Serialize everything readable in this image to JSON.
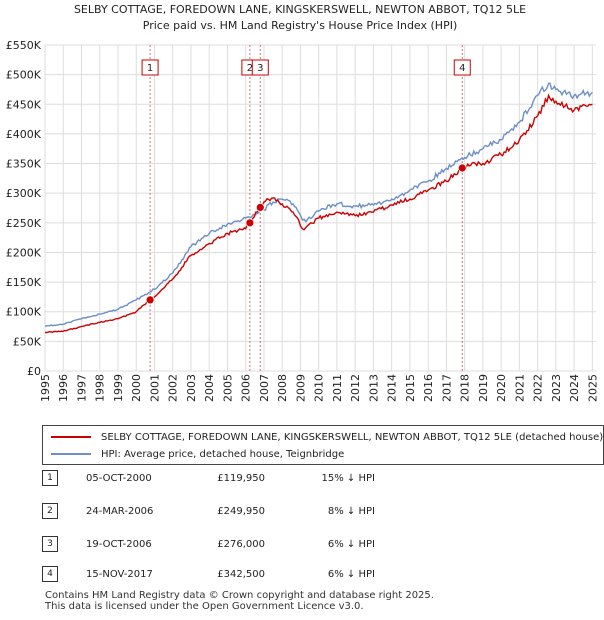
{
  "chart_data": {
    "type": "line",
    "title": "SELBY COTTAGE, FOREDOWN LANE, KINGSKERSWELL, NEWTON ABBOT, TQ12 5LE",
    "subtitle": "Price paid vs. HM Land Registry's House Price Index (HPI)",
    "xlim": [
      1995,
      2025.2
    ],
    "ylim": [
      0,
      550000
    ],
    "y_ticks": [
      0,
      50000,
      100000,
      150000,
      200000,
      250000,
      300000,
      350000,
      400000,
      450000,
      500000,
      550000
    ],
    "y_tick_labels": [
      "£0",
      "£50K",
      "£100K",
      "£150K",
      "£200K",
      "£250K",
      "£300K",
      "£350K",
      "£400K",
      "£450K",
      "£500K",
      "£550K"
    ],
    "x_ticks": [
      1995,
      1996,
      1997,
      1998,
      1999,
      2000,
      2001,
      2002,
      2003,
      2004,
      2005,
      2006,
      2007,
      2008,
      2009,
      2010,
      2011,
      2012,
      2013,
      2014,
      2015,
      2016,
      2017,
      2018,
      2019,
      2020,
      2021,
      2022,
      2023,
      2024,
      2025
    ],
    "x_tick_labels": [
      "1995",
      "1996",
      "1997",
      "1998",
      "1999",
      "2000",
      "2001",
      "2002",
      "2003",
      "2004",
      "2005",
      "2006",
      "2007",
      "2008",
      "2009",
      "2010",
      "2011",
      "2012",
      "2013",
      "2014",
      "2015",
      "2016",
      "2017",
      "2018",
      "2019",
      "2020",
      "2021",
      "2022",
      "2023",
      "2024",
      "2025"
    ],
    "grid": true,
    "series": [
      {
        "name": "SELBY COTTAGE, FOREDOWN LANE, KINGSKERSWELL, NEWTON ABBOT, TQ12 5LE (detached house)",
        "color": "#cc0000",
        "x": [
          1995,
          1996,
          1997,
          1998,
          1999,
          2000,
          2000.76,
          2001,
          2002,
          2003,
          2004,
          2005,
          2006,
          2006.23,
          2006.8,
          2007,
          2007.5,
          2008,
          2008.6,
          2008.9,
          2009.1,
          2009.3,
          2010,
          2011,
          2012,
          2013,
          2014,
          2015,
          2016,
          2017,
          2017.87,
          2018,
          2019,
          2020,
          2021,
          2022,
          2022.6,
          2023,
          2024,
          2025
        ],
        "y": [
          65000,
          67000,
          75000,
          82000,
          88000,
          100000,
          119950,
          125000,
          155000,
          195000,
          215000,
          232000,
          240000,
          249950,
          276000,
          285000,
          292000,
          282000,
          268000,
          255000,
          240000,
          242000,
          258000,
          268000,
          262000,
          268000,
          280000,
          290000,
          305000,
          320000,
          342500,
          345000,
          350000,
          365000,
          390000,
          430000,
          465000,
          455000,
          440000,
          450000
        ]
      },
      {
        "name": "HPI: Average price, detached house, Teignbridge",
        "color": "#6b8fc6",
        "x": [
          1995,
          1996,
          1997,
          1998,
          1999,
          2000,
          2001,
          2002,
          2003,
          2004,
          2005,
          2006,
          2007,
          2007.5,
          2008,
          2008.6,
          2008.9,
          2009.1,
          2009.3,
          2010,
          2011,
          2012,
          2013,
          2014,
          2015,
          2016,
          2017,
          2018,
          2019,
          2020,
          2021,
          2022,
          2022.6,
          2023,
          2024,
          2025
        ],
        "y": [
          76000,
          79000,
          88000,
          96000,
          104000,
          120000,
          138000,
          165000,
          210000,
          232000,
          248000,
          258000,
          272000,
          285000,
          290000,
          282000,
          268000,
          255000,
          252000,
          270000,
          282000,
          278000,
          280000,
          290000,
          305000,
          320000,
          342000,
          360000,
          375000,
          390000,
          420000,
          465000,
          485000,
          475000,
          465000,
          470000
        ]
      }
    ],
    "markers": [
      {
        "label": "1",
        "x": 2000.76,
        "y": 119950
      },
      {
        "label": "2",
        "x": 2006.23,
        "y": 249950
      },
      {
        "label": "3",
        "x": 2006.8,
        "y": 276000
      },
      {
        "label": "4",
        "x": 2017.87,
        "y": 342500
      }
    ]
  },
  "legend": {
    "property_label": "SELBY COTTAGE, FOREDOWN LANE, KINGSKERSWELL, NEWTON ABBOT, TQ12 5LE (detached house)",
    "hpi_label": "HPI: Average price, detached house, Teignbridge"
  },
  "transactions": [
    {
      "num": "1",
      "date": "05-OCT-2000",
      "price": "£119,950",
      "hpi": "15% ↓ HPI"
    },
    {
      "num": "2",
      "date": "24-MAR-2006",
      "price": "£249,950",
      "hpi": "8% ↓ HPI"
    },
    {
      "num": "3",
      "date": "19-OCT-2006",
      "price": "£276,000",
      "hpi": "6% ↓ HPI"
    },
    {
      "num": "4",
      "date": "15-NOV-2017",
      "price": "£342,500",
      "hpi": "6% ↓ HPI"
    }
  ],
  "footer": {
    "line1": "Contains HM Land Registry data © Crown copyright and database right 2025.",
    "line2": "This data is licensed under the Open Government Licence v3.0."
  }
}
